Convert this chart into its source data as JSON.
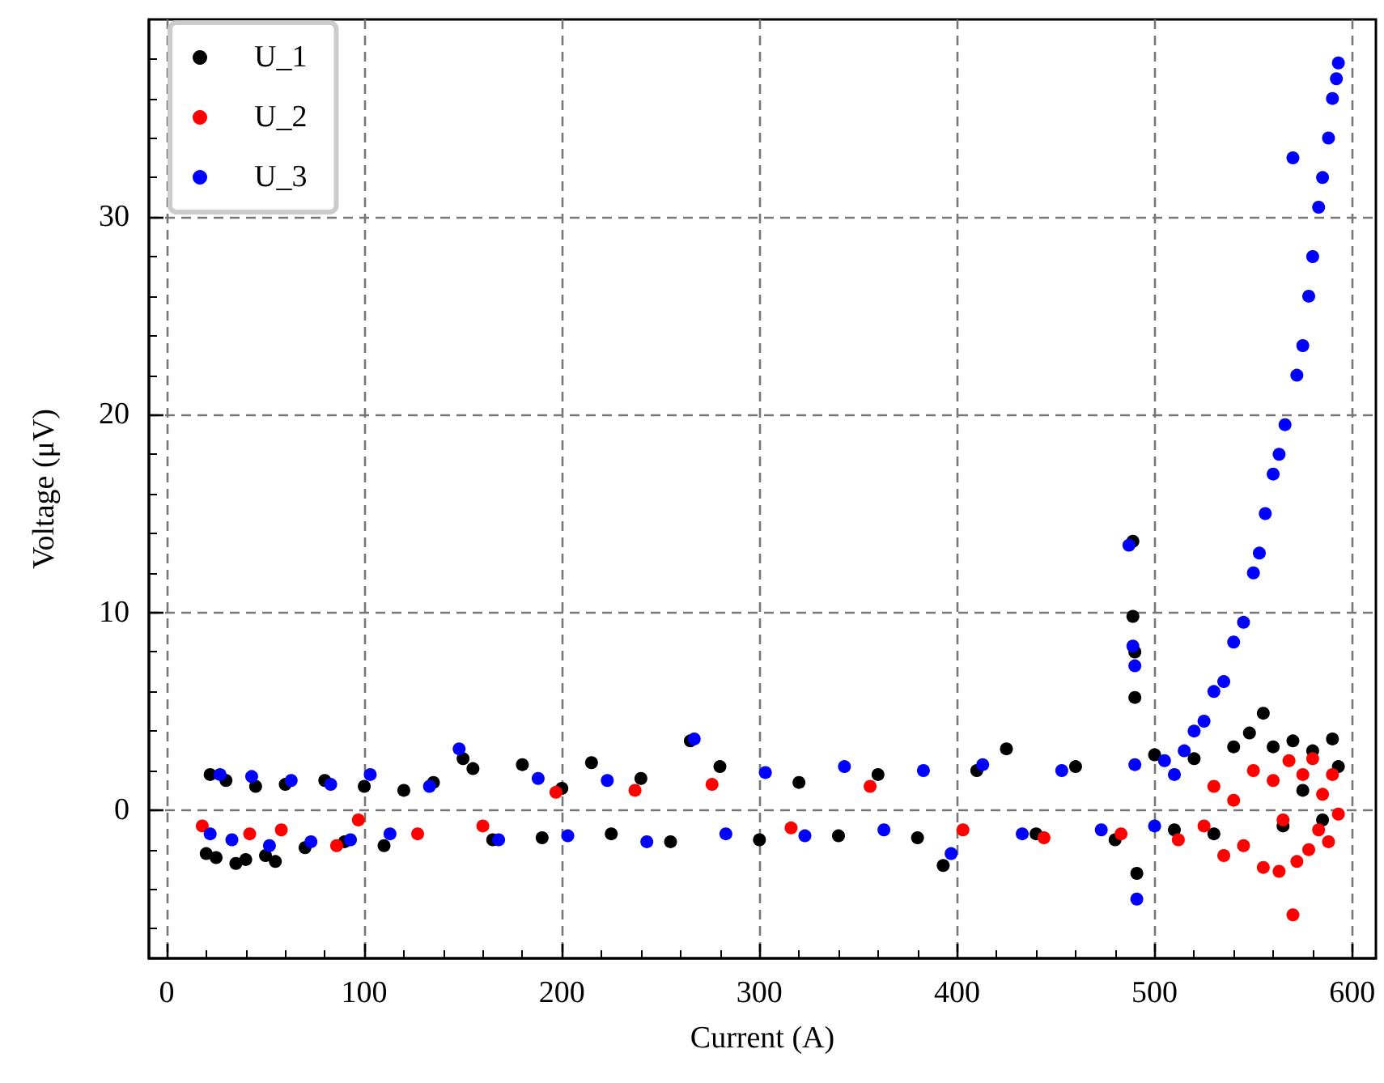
{
  "chart_data": {
    "type": "scatter",
    "xlabel": "Current (A)",
    "ylabel": "Voltage (μV)",
    "xlim": [
      -9,
      612
    ],
    "ylim": [
      -7.5,
      40
    ],
    "xticks": [
      0,
      100,
      200,
      300,
      400,
      500,
      600
    ],
    "yticks": [
      0,
      10,
      20,
      30
    ],
    "grid": true,
    "legend": "top left",
    "marker": "circle",
    "series": [
      {
        "name": "U_1",
        "color": "#000000",
        "x": [
          20,
          22,
          25,
          30,
          35,
          40,
          45,
          50,
          55,
          60,
          70,
          80,
          90,
          100,
          110,
          120,
          135,
          150,
          155,
          165,
          180,
          190,
          200,
          215,
          225,
          240,
          255,
          265,
          280,
          300,
          320,
          340,
          360,
          380,
          393,
          410,
          425,
          440,
          460,
          480,
          489,
          489,
          490,
          490,
          491,
          500,
          510,
          520,
          530,
          540,
          548,
          555,
          560,
          565,
          570,
          575,
          580,
          585,
          590,
          593
        ],
        "values": [
          -2.2,
          1.8,
          -2.4,
          1.5,
          -2.7,
          -2.5,
          1.2,
          -2.3,
          -2.6,
          1.3,
          -1.9,
          1.5,
          -1.6,
          1.2,
          -1.8,
          1.0,
          1.4,
          2.6,
          2.1,
          -1.5,
          2.3,
          -1.4,
          1.1,
          2.4,
          -1.2,
          1.6,
          -1.6,
          3.5,
          2.2,
          -1.5,
          1.4,
          -1.3,
          1.8,
          -1.4,
          -2.8,
          2.0,
          3.1,
          -1.2,
          2.2,
          -1.5,
          13.6,
          9.8,
          8.0,
          5.7,
          -3.2,
          2.8,
          -1.0,
          2.6,
          -1.2,
          3.2,
          3.9,
          4.9,
          3.2,
          -0.8,
          3.5,
          1.0,
          3.0,
          -0.5,
          3.6,
          2.2
        ]
      },
      {
        "name": "U_2",
        "color": "#ff0000",
        "x": [
          18,
          42,
          58,
          86,
          97,
          127,
          160,
          197,
          237,
          276,
          316,
          356,
          403,
          444,
          483,
          512,
          525,
          530,
          535,
          540,
          545,
          550,
          555,
          560,
          563,
          565,
          568,
          570,
          572,
          575,
          578,
          580,
          583,
          585,
          588,
          590,
          593
        ],
        "values": [
          -0.8,
          -1.2,
          -1.0,
          -1.8,
          -0.5,
          -1.2,
          -0.8,
          0.9,
          1.0,
          1.3,
          -0.9,
          1.2,
          -1.0,
          -1.4,
          -1.2,
          -1.5,
          -0.8,
          1.2,
          -2.3,
          0.5,
          -1.8,
          2.0,
          -2.9,
          1.5,
          -3.1,
          -0.5,
          2.5,
          -5.3,
          -2.6,
          1.8,
          -2.0,
          2.6,
          -1.0,
          0.8,
          -1.6,
          1.8,
          -0.2
        ]
      },
      {
        "name": "U_3",
        "color": "#0000ff",
        "x": [
          22,
          27,
          33,
          43,
          52,
          63,
          73,
          83,
          93,
          103,
          113,
          133,
          148,
          168,
          188,
          203,
          223,
          243,
          267,
          283,
          303,
          323,
          343,
          363,
          383,
          397,
          413,
          433,
          453,
          473,
          487,
          489,
          490,
          490,
          491,
          500,
          505,
          510,
          515,
          520,
          525,
          530,
          535,
          540,
          545,
          550,
          553,
          556,
          560,
          563,
          566,
          570,
          572,
          575,
          578,
          580,
          583,
          585,
          588,
          590,
          592,
          593
        ],
        "values": [
          -1.2,
          1.8,
          -1.5,
          1.7,
          -1.8,
          1.5,
          -1.6,
          1.3,
          -1.5,
          1.8,
          -1.2,
          1.2,
          3.1,
          -1.5,
          1.6,
          -1.3,
          1.5,
          -1.6,
          3.6,
          -1.2,
          1.9,
          -1.3,
          2.2,
          -1.0,
          2.0,
          -2.2,
          2.3,
          -1.2,
          2.0,
          -1.0,
          13.4,
          8.3,
          7.3,
          2.3,
          -4.5,
          -0.8,
          2.5,
          1.8,
          3.0,
          4.0,
          4.5,
          6.0,
          6.5,
          8.5,
          9.5,
          12.0,
          13.0,
          15.0,
          17.0,
          18.0,
          19.5,
          33.0,
          22.0,
          23.5,
          26.0,
          28.0,
          30.5,
          32.0,
          34.0,
          36.0,
          37.0,
          37.8
        ]
      }
    ]
  }
}
